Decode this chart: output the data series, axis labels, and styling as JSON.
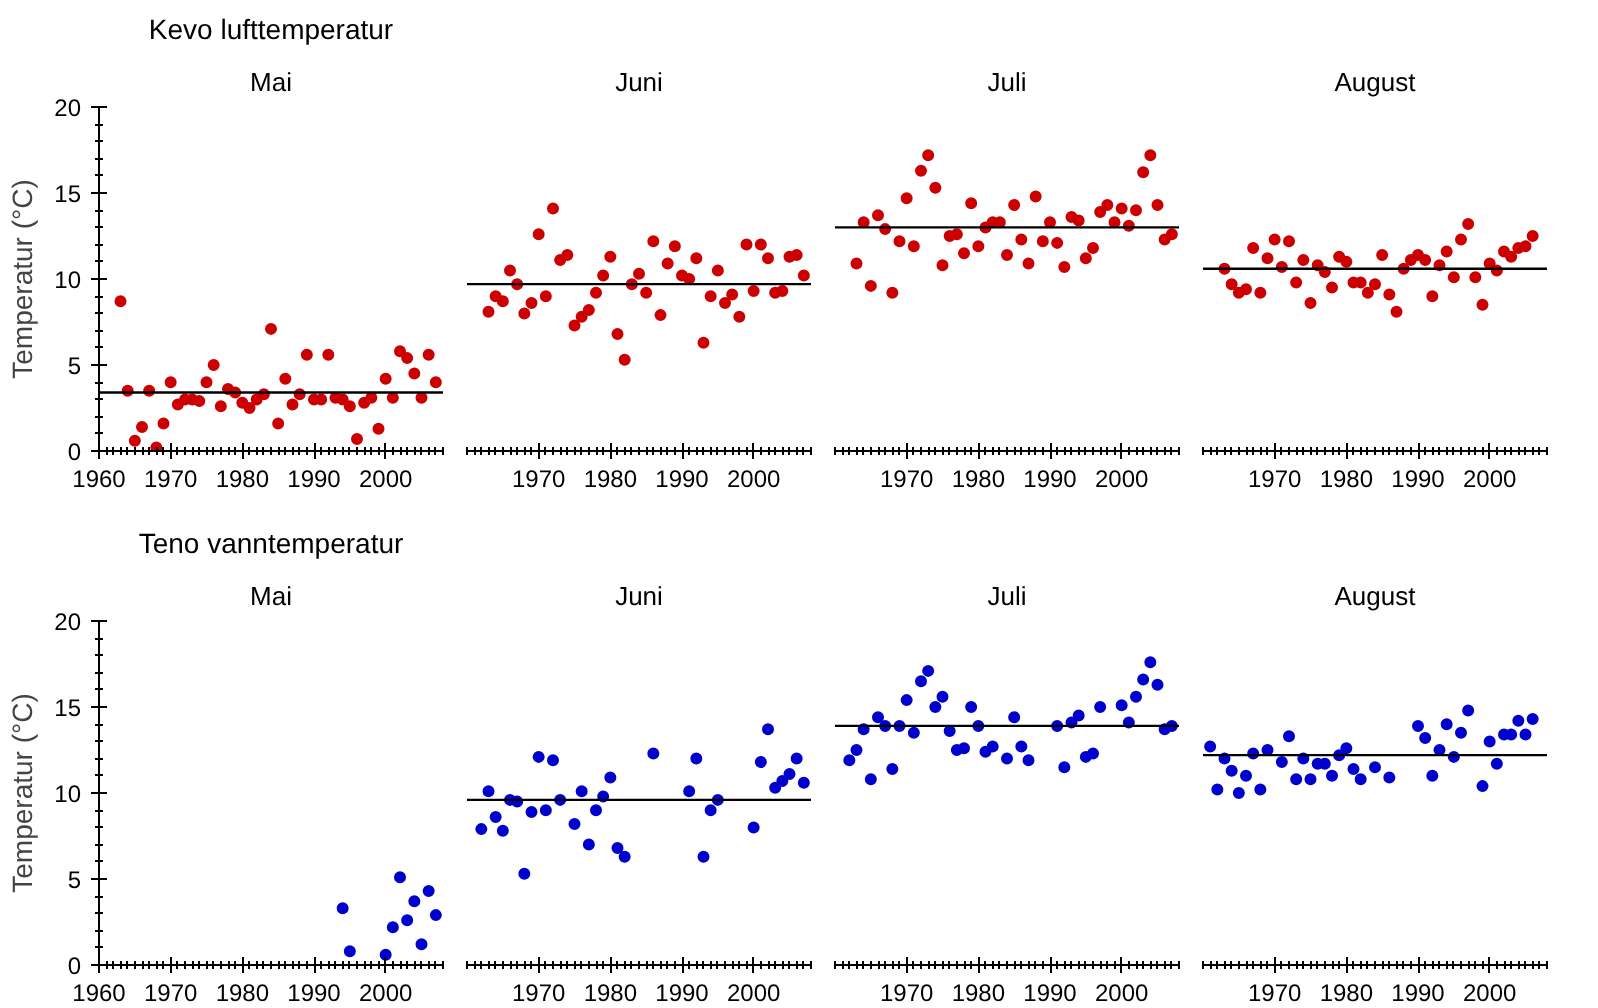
{
  "chart_data": [
    {
      "type": "scatter",
      "title": "Kevo lufttemperatur",
      "subtitle": "Mai",
      "ylabel": "Temperatur (°C)",
      "xlim": [
        1960,
        2008
      ],
      "ylim": [
        0,
        20
      ],
      "xticks": [
        1960,
        1970,
        1980,
        1990,
        2000
      ],
      "yticks": [
        0,
        5,
        10,
        15,
        20
      ],
      "marker": "circle",
      "series": [
        {
          "color": "#cc0000",
          "x": [
            1963,
            1964,
            1965,
            1966,
            1967,
            1968,
            1969,
            1970,
            1971,
            1972,
            1973,
            1974,
            1975,
            1976,
            1977,
            1978,
            1979,
            1980,
            1981,
            1982,
            1983,
            1984,
            1985,
            1986,
            1987,
            1988,
            1989,
            1990,
            1991,
            1992,
            1993,
            1994,
            1995,
            1996,
            1997,
            1998,
            1999,
            2000,
            2001,
            2002,
            2003,
            2004,
            2005,
            2006,
            2007
          ],
          "values": [
            8.7,
            3.5,
            0.6,
            1.4,
            3.5,
            0.2,
            1.6,
            4.0,
            2.7,
            3.0,
            3.0,
            2.9,
            4.0,
            5.0,
            2.6,
            3.6,
            3.4,
            2.8,
            2.5,
            3.0,
            3.3,
            7.1,
            1.6,
            4.2,
            2.7,
            3.3,
            5.6,
            3.0,
            3.0,
            5.6,
            3.1,
            3.0,
            2.6,
            0.7,
            2.8,
            3.1,
            1.3,
            4.2,
            3.1,
            5.8,
            5.4,
            4.5,
            3.1,
            5.6,
            4.0
          ]
        }
      ],
      "ref_lines": [
        {
          "axis": "y",
          "value": 3.4,
          "color": "#000000"
        }
      ]
    },
    {
      "type": "scatter",
      "subtitle": "Juni",
      "xlim": [
        1960,
        2008
      ],
      "ylim": [
        0,
        20
      ],
      "xticks": [
        1970,
        1980,
        1990,
        2000
      ],
      "tick_labels": "x",
      "marker": "circle",
      "series": [
        {
          "color": "#cc0000",
          "x": [
            1963,
            1964,
            1965,
            1966,
            1967,
            1968,
            1969,
            1970,
            1971,
            1972,
            1973,
            1974,
            1975,
            1976,
            1977,
            1978,
            1979,
            1980,
            1981,
            1982,
            1983,
            1984,
            1985,
            1986,
            1987,
            1988,
            1989,
            1990,
            1991,
            1992,
            1993,
            1994,
            1995,
            1996,
            1997,
            1998,
            1999,
            2000,
            2001,
            2002,
            2003,
            2004,
            2005,
            2006,
            2007
          ],
          "values": [
            8.1,
            9.0,
            8.7,
            10.5,
            9.7,
            8.0,
            8.6,
            12.6,
            9.0,
            14.1,
            11.1,
            11.4,
            7.3,
            7.8,
            8.2,
            9.2,
            10.2,
            11.3,
            6.8,
            5.3,
            9.7,
            10.3,
            9.2,
            12.2,
            7.9,
            10.9,
            11.9,
            10.2,
            10.0,
            11.2,
            6.3,
            9.0,
            10.5,
            8.6,
            9.1,
            7.8,
            12.0,
            9.3,
            12.0,
            11.2,
            9.2,
            9.3,
            11.3,
            11.4,
            10.2
          ]
        }
      ],
      "ref_lines": [
        {
          "axis": "y",
          "value": 9.7,
          "color": "#000000"
        }
      ]
    },
    {
      "type": "scatter",
      "subtitle": "Juli",
      "xlim": [
        1960,
        2008
      ],
      "ylim": [
        0,
        20
      ],
      "xticks": [
        1970,
        1980,
        1990,
        2000
      ],
      "tick_labels": "x",
      "marker": "circle",
      "series": [
        {
          "color": "#cc0000",
          "x": [
            1963,
            1964,
            1965,
            1966,
            1967,
            1968,
            1969,
            1970,
            1971,
            1972,
            1973,
            1974,
            1975,
            1976,
            1977,
            1978,
            1979,
            1980,
            1981,
            1982,
            1983,
            1984,
            1985,
            1986,
            1987,
            1988,
            1989,
            1990,
            1991,
            1992,
            1993,
            1994,
            1995,
            1996,
            1997,
            1998,
            1999,
            2000,
            2001,
            2002,
            2003,
            2004,
            2005,
            2006,
            2007
          ],
          "values": [
            10.9,
            13.3,
            9.6,
            13.7,
            12.9,
            9.2,
            12.2,
            14.7,
            11.9,
            16.3,
            17.2,
            15.3,
            10.8,
            12.5,
            12.6,
            11.5,
            14.4,
            11.9,
            13.0,
            13.3,
            13.3,
            11.4,
            14.3,
            12.3,
            10.9,
            14.8,
            12.2,
            13.3,
            12.1,
            10.7,
            13.6,
            13.4,
            11.2,
            11.8,
            13.9,
            14.3,
            13.3,
            14.1,
            13.1,
            14.0,
            16.2,
            17.2,
            14.3,
            12.3,
            12.6
          ]
        }
      ],
      "ref_lines": [
        {
          "axis": "y",
          "value": 13.0,
          "color": "#000000"
        }
      ]
    },
    {
      "type": "scatter",
      "subtitle": "August",
      "xlim": [
        1960,
        2008
      ],
      "ylim": [
        0,
        20
      ],
      "xticks": [
        1970,
        1980,
        1990,
        2000
      ],
      "tick_labels": "x",
      "marker": "circle",
      "series": [
        {
          "color": "#cc0000",
          "x": [
            1963,
            1964,
            1965,
            1966,
            1967,
            1968,
            1969,
            1970,
            1971,
            1972,
            1973,
            1974,
            1975,
            1976,
            1977,
            1978,
            1979,
            1980,
            1981,
            1982,
            1983,
            1984,
            1985,
            1986,
            1987,
            1988,
            1989,
            1990,
            1991,
            1992,
            1993,
            1994,
            1995,
            1996,
            1997,
            1998,
            1999,
            2000,
            2001,
            2002,
            2003,
            2004,
            2005,
            2006
          ],
          "values": [
            10.6,
            9.7,
            9.2,
            9.4,
            11.8,
            9.2,
            11.2,
            12.3,
            10.7,
            12.2,
            9.8,
            11.1,
            8.6,
            10.8,
            10.4,
            9.5,
            11.3,
            11.0,
            9.8,
            9.8,
            9.2,
            9.7,
            11.4,
            9.1,
            8.1,
            10.6,
            11.1,
            11.4,
            11.1,
            9.0,
            10.8,
            11.6,
            10.1,
            12.3,
            13.2,
            10.1,
            8.5,
            10.9,
            10.5,
            11.6,
            11.3,
            11.8,
            11.9,
            12.5
          ]
        }
      ],
      "ref_lines": [
        {
          "axis": "y",
          "value": 10.6,
          "color": "#000000"
        }
      ]
    },
    {
      "type": "scatter",
      "title": "Teno vanntemperatur",
      "subtitle": "Mai",
      "ylabel": "Temperatur (°C)",
      "xlim": [
        1960,
        2008
      ],
      "ylim": [
        0,
        20
      ],
      "xticks": [
        1960,
        1970,
        1980,
        1990,
        2000
      ],
      "yticks": [
        0,
        5,
        10,
        15,
        20
      ],
      "marker": "circle",
      "series": [
        {
          "color": "#0000cc",
          "x": [
            1994,
            1995,
            2000,
            2001,
            2002,
            2003,
            2004,
            2005,
            2006,
            2007
          ],
          "values": [
            3.3,
            0.8,
            0.6,
            2.2,
            5.1,
            2.6,
            3.7,
            1.2,
            4.3,
            2.9
          ]
        }
      ]
    },
    {
      "type": "scatter",
      "subtitle": "Juni",
      "xlim": [
        1960,
        2008
      ],
      "ylim": [
        0,
        20
      ],
      "xticks": [
        1970,
        1980,
        1990,
        2000
      ],
      "tick_labels": "x",
      "marker": "circle",
      "series": [
        {
          "color": "#0000cc",
          "x": [
            1962,
            1963,
            1964,
            1965,
            1966,
            1967,
            1968,
            1969,
            1970,
            1971,
            1972,
            1973,
            1975,
            1976,
            1977,
            1978,
            1979,
            1980,
            1981,
            1982,
            1986,
            1991,
            1992,
            1993,
            1994,
            1995,
            2000,
            2001,
            2002,
            2003,
            2004,
            2005,
            2006,
            2007
          ],
          "values": [
            7.9,
            10.1,
            8.6,
            7.8,
            9.6,
            9.5,
            5.3,
            8.9,
            12.1,
            9.0,
            11.9,
            9.6,
            8.2,
            10.1,
            7.0,
            9.0,
            9.8,
            10.9,
            6.8,
            6.3,
            12.3,
            10.1,
            12.0,
            6.3,
            9.0,
            9.6,
            8.0,
            11.8,
            13.7,
            10.3,
            10.7,
            11.1,
            12.0,
            10.6
          ]
        }
      ],
      "ref_lines": [
        {
          "axis": "y",
          "value": 9.6,
          "color": "#000000"
        }
      ]
    },
    {
      "type": "scatter",
      "subtitle": "Juli",
      "xlim": [
        1960,
        2008
      ],
      "ylim": [
        0,
        20
      ],
      "xticks": [
        1970,
        1980,
        1990,
        2000
      ],
      "tick_labels": "x",
      "marker": "circle",
      "series": [
        {
          "color": "#0000cc",
          "x": [
            1962,
            1963,
            1964,
            1965,
            1966,
            1967,
            1968,
            1969,
            1970,
            1971,
            1972,
            1973,
            1974,
            1975,
            1976,
            1977,
            1978,
            1979,
            1980,
            1981,
            1982,
            1984,
            1985,
            1986,
            1987,
            1991,
            1992,
            1993,
            1994,
            1995,
            1996,
            1997,
            2000,
            2001,
            2002,
            2003,
            2004,
            2005,
            2006,
            2007
          ],
          "values": [
            11.9,
            12.5,
            13.7,
            10.8,
            14.4,
            13.9,
            11.4,
            13.9,
            15.4,
            13.5,
            16.5,
            17.1,
            15.0,
            15.6,
            13.6,
            12.5,
            12.6,
            15.0,
            13.9,
            12.4,
            12.7,
            12.0,
            14.4,
            12.7,
            11.9,
            13.9,
            11.5,
            14.1,
            14.5,
            12.1,
            12.3,
            15.0,
            15.1,
            14.1,
            15.6,
            16.6,
            17.6,
            16.3,
            13.7,
            13.9
          ]
        }
      ],
      "ref_lines": [
        {
          "axis": "y",
          "value": 13.9,
          "color": "#000000"
        }
      ]
    },
    {
      "type": "scatter",
      "subtitle": "August",
      "xlim": [
        1960,
        2008
      ],
      "ylim": [
        0,
        20
      ],
      "xticks": [
        1970,
        1980,
        1990,
        2000
      ],
      "tick_labels": "x",
      "marker": "circle",
      "series": [
        {
          "color": "#0000cc",
          "x": [
            1961,
            1962,
            1963,
            1964,
            1965,
            1966,
            1967,
            1968,
            1969,
            1971,
            1972,
            1973,
            1974,
            1975,
            1976,
            1977,
            1978,
            1979,
            1980,
            1981,
            1982,
            1984,
            1986,
            1990,
            1991,
            1992,
            1993,
            1994,
            1995,
            1996,
            1997,
            1999,
            2000,
            2001,
            2002,
            2003,
            2004,
            2005,
            2006
          ],
          "values": [
            12.7,
            10.2,
            12.0,
            11.3,
            10.0,
            11.0,
            12.3,
            10.2,
            12.5,
            11.8,
            13.3,
            10.8,
            12.0,
            10.8,
            11.7,
            11.7,
            11.0,
            12.2,
            12.6,
            11.4,
            10.8,
            11.5,
            10.9,
            13.9,
            13.2,
            11.0,
            12.5,
            14.0,
            12.1,
            13.5,
            14.8,
            10.4,
            13.0,
            11.7,
            13.4,
            13.4,
            14.2,
            13.4,
            14.3
          ]
        }
      ],
      "ref_lines": [
        {
          "axis": "y",
          "value": 12.2,
          "color": "#000000"
        }
      ]
    }
  ]
}
